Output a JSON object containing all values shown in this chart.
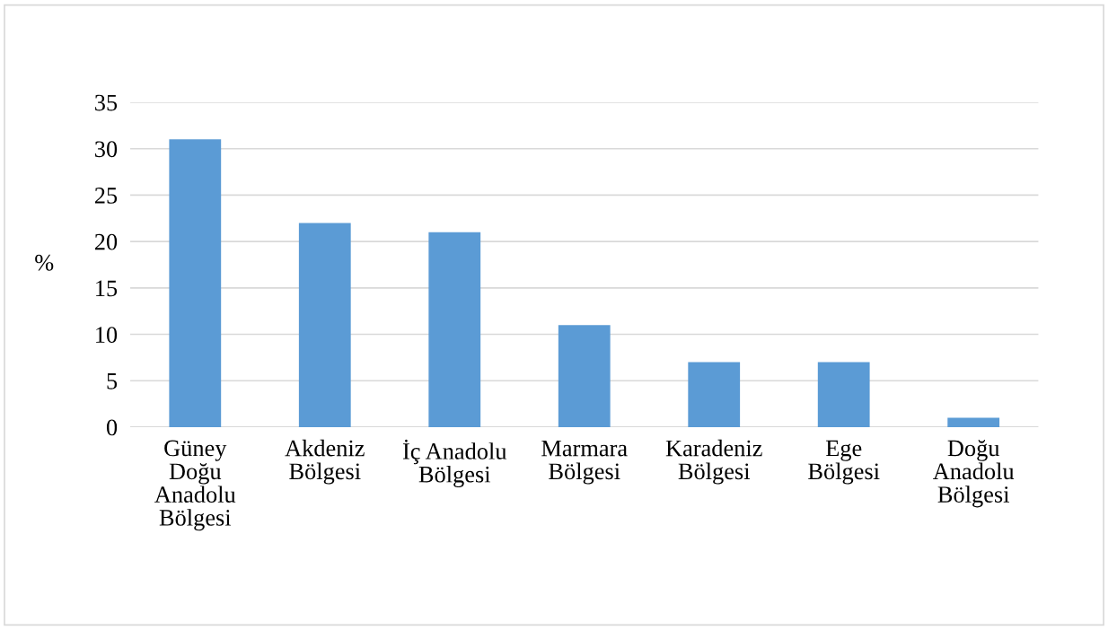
{
  "chart_data": {
    "type": "bar",
    "ylabel": "%",
    "categories": [
      "Güney\nDoğu\nAnadolu\nBölgesi",
      "Akdeniz\nBölgesi",
      "İç Anadolu\nBölgesi",
      "Marmara\nBölgesi",
      "Karadeniz\nBölgesi",
      "Ege\nBölgesi",
      "Doğu\nAnadolu\nBölgesi"
    ],
    "values": [
      31,
      22,
      21,
      11,
      7,
      7,
      1
    ],
    "color": "#5b9bd5",
    "ylim": [
      0,
      35
    ],
    "yticks": [
      0,
      5,
      10,
      15,
      20,
      25,
      30,
      35
    ],
    "grid": "y"
  }
}
